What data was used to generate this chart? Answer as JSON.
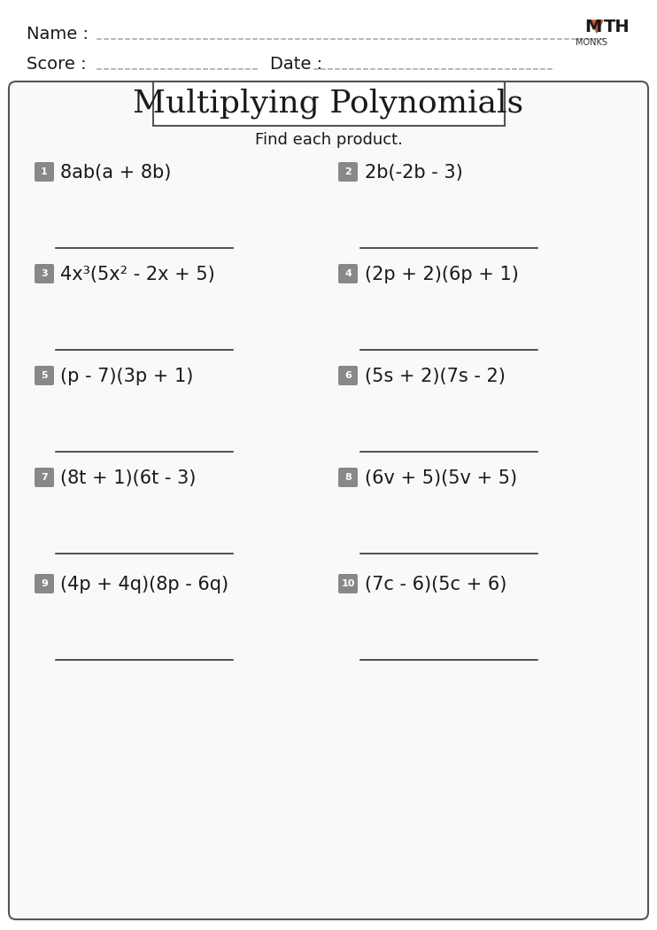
{
  "title": "Multiplying Polynomials",
  "subtitle": "Find each product.",
  "name_label": "Name :",
  "score_label": "Score :",
  "date_label": "Date :",
  "problems": [
    {
      "num": "1",
      "expr": "8ab(a + 8b)"
    },
    {
      "num": "2",
      "expr": "2b(-2b - 3)"
    },
    {
      "num": "3",
      "expr": "4x³(5x² - 2x + 5)"
    },
    {
      "num": "4",
      "expr": "(2p + 2)(6p + 1)"
    },
    {
      "num": "5",
      "expr": "(p - 7)(3p + 1)"
    },
    {
      "num": "6",
      "expr": "(5s + 2)(7s - 2)"
    },
    {
      "num": "7",
      "expr": "(8t + 1)(6t - 3)"
    },
    {
      "num": "8",
      "expr": "(6v + 5)(5v + 5)"
    },
    {
      "num": "9",
      "expr": "(4p + 4q)(8p - 6q)"
    },
    {
      "num": "10",
      "expr": "(7c - 6)(5c + 6)"
    }
  ],
  "bg_color": "#ffffff",
  "box_color": "#ffffff",
  "box_edge_color": "#555555",
  "num_badge_color": "#888888",
  "num_badge_text_color": "#ffffff",
  "line_color": "#333333",
  "text_color": "#1a1a1a",
  "dash_color": "#aaaaaa",
  "logo_M_color": "#1a1a1a",
  "logo_A_color": "#cc5533",
  "logo_TH_color": "#1a1a1a",
  "logo_MONKS_color": "#333333",
  "title_fontsize": 26,
  "subtitle_fontsize": 13,
  "problem_fontsize": 15,
  "header_fontsize": 14,
  "page_width": 7.42,
  "page_height": 10.5
}
